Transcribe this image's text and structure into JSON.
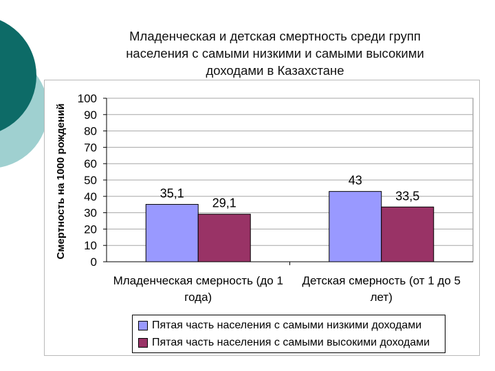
{
  "slide": {
    "title_lines": [
      "Младенческая и детская смертность среди групп",
      "населения с самыми низкими и самыми высокими",
      "доходами в Казахстане"
    ]
  },
  "colors": {
    "deco_dark": "#0d6b67",
    "deco_light": "#9fd0d0",
    "series_low": "#9999ff",
    "series_high": "#993366"
  },
  "chart_data": {
    "type": "bar",
    "categories": [
      [
        "Младенческая смерность (до 1",
        "года)"
      ],
      [
        "Детская смерность (от 1 до 5",
        "лет)"
      ]
    ],
    "series": [
      {
        "name": "Пятая часть населения с самыми низкими доходами",
        "values": [
          35.1,
          43
        ],
        "labels": [
          "35,1",
          "43"
        ],
        "color": "#9999ff"
      },
      {
        "name": "Пятая часть населения с самыми высокими доходами",
        "values": [
          29.1,
          33.5
        ],
        "labels": [
          "29,1",
          "33,5"
        ],
        "color": "#993366"
      }
    ],
    "ylabel": "Смертность на 1000 рождений",
    "ylim": [
      0,
      100
    ],
    "yticks": [
      0,
      10,
      20,
      30,
      40,
      50,
      60,
      70,
      80,
      90,
      100
    ],
    "grid": true,
    "legend_position": "bottom"
  }
}
